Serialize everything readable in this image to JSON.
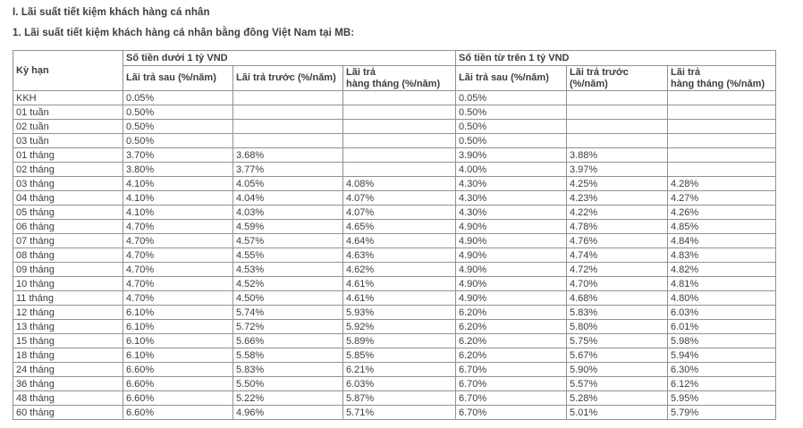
{
  "page": {
    "title_main": "I. Lãi suất tiết kiệm khách hàng cá nhân",
    "title_sub": "1. Lãi suất tiết kiệm khách hàng cá nhân bằng đồng Việt Nam tại MB:"
  },
  "table": {
    "term_header": "Kỳ hạn",
    "group_under": "Số tiền dưới 1 tỷ VND",
    "group_over": "Số tiền từ trên 1 tỷ VND",
    "sub": {
      "paid_after": "Lãi trả sau (%/năm)",
      "paid_before": "Lãi trả trước (%/năm)",
      "paid_monthly_l1": "Lãi trả",
      "paid_monthly_l2": "hàng tháng (%/năm)"
    },
    "rows": [
      {
        "term": "KKH",
        "values": [
          "0.05%",
          "",
          "",
          "0.05%",
          "",
          ""
        ]
      },
      {
        "term": "01 tuần",
        "values": [
          "0.50%",
          "",
          "",
          "0.50%",
          "",
          ""
        ]
      },
      {
        "term": "02 tuần",
        "values": [
          "0.50%",
          "",
          "",
          "0.50%",
          "",
          ""
        ]
      },
      {
        "term": "03 tuần",
        "values": [
          "0.50%",
          "",
          "",
          "0.50%",
          "",
          ""
        ]
      },
      {
        "term": "01 tháng",
        "values": [
          "3.70%",
          "3.68%",
          "",
          "3.90%",
          "3.88%",
          ""
        ]
      },
      {
        "term": "02 tháng",
        "values": [
          "3.80%",
          "3.77%",
          "",
          "4.00%",
          "3.97%",
          ""
        ]
      },
      {
        "term": "03 tháng",
        "values": [
          "4.10%",
          "4.05%",
          "4.08%",
          "4.30%",
          "4.25%",
          "4.28%"
        ]
      },
      {
        "term": "04 tháng",
        "values": [
          "4.10%",
          "4.04%",
          "4.07%",
          "4.30%",
          "4.23%",
          "4.27%"
        ]
      },
      {
        "term": "05 tháng",
        "values": [
          "4.10%",
          "4.03%",
          "4.07%",
          "4.30%",
          "4.22%",
          "4.26%"
        ]
      },
      {
        "term": "06 tháng",
        "values": [
          "4.70%",
          "4.59%",
          "4.65%",
          "4.90%",
          "4.78%",
          "4.85%"
        ]
      },
      {
        "term": "07 tháng",
        "values": [
          "4.70%",
          "4.57%",
          "4.64%",
          "4.90%",
          "4.76%",
          "4.84%"
        ]
      },
      {
        "term": "08 tháng",
        "values": [
          "4.70%",
          "4.55%",
          "4.63%",
          "4.90%",
          "4.74%",
          "4.83%"
        ]
      },
      {
        "term": "09 tháng",
        "values": [
          "4.70%",
          "4.53%",
          "4.62%",
          "4.90%",
          "4.72%",
          "4.82%"
        ]
      },
      {
        "term": "10 tháng",
        "values": [
          "4.70%",
          "4.52%",
          "4.61%",
          "4.90%",
          "4.70%",
          "4.81%"
        ]
      },
      {
        "term": "11 tháng",
        "values": [
          "4.70%",
          "4.50%",
          "4.61%",
          "4.90%",
          "4.68%",
          "4.80%"
        ]
      },
      {
        "term": "12 tháng",
        "values": [
          "6.10%",
          "5.74%",
          "5.93%",
          "6.20%",
          "5.83%",
          "6.03%"
        ]
      },
      {
        "term": "13 tháng",
        "values": [
          "6.10%",
          "5.72%",
          "5.92%",
          "6.20%",
          "5.80%",
          "6.01%"
        ]
      },
      {
        "term": "15 tháng",
        "values": [
          "6.10%",
          "5.66%",
          "5.89%",
          "6.20%",
          "5.75%",
          "5.98%"
        ]
      },
      {
        "term": "18 tháng",
        "values": [
          "6.10%",
          "5.58%",
          "5.85%",
          "6.20%",
          "5.67%",
          "5.94%"
        ]
      },
      {
        "term": "24 tháng",
        "values": [
          "6.60%",
          "5.83%",
          "6.21%",
          "6.70%",
          "5.90%",
          "6.30%"
        ]
      },
      {
        "term": "36 tháng",
        "values": [
          "6.60%",
          "5.50%",
          "6.03%",
          "6.70%",
          "5.57%",
          "6.12%"
        ]
      },
      {
        "term": "48 tháng",
        "values": [
          "6.60%",
          "5.22%",
          "5.87%",
          "6.70%",
          "5.28%",
          "5.95%"
        ]
      },
      {
        "term": "60 tháng",
        "values": [
          "6.60%",
          "4.96%",
          "5.71%",
          "6.70%",
          "5.01%",
          "5.79%"
        ]
      }
    ]
  },
  "colors": {
    "border": "#919191",
    "text": "#3d3d3d",
    "background": "#ffffff"
  }
}
